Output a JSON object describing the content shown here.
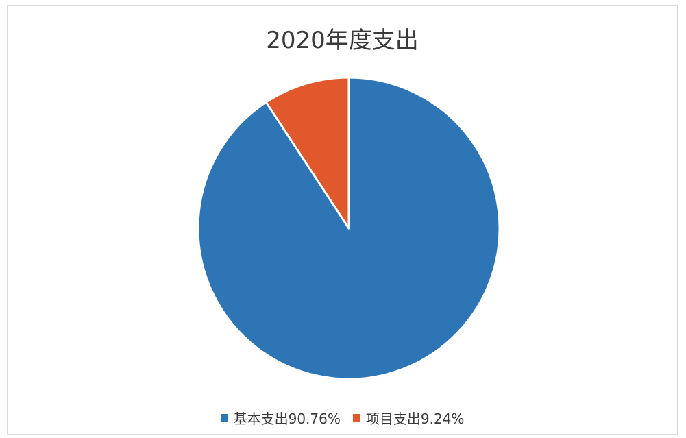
{
  "chart_data": {
    "type": "pie",
    "title": "2020年度支出",
    "series": [
      {
        "name": "基本支出",
        "value": 90.76,
        "color": "#2e75b6",
        "legend_label": "基本支出90.76%"
      },
      {
        "name": "项目支出",
        "value": 9.24,
        "color": "#e0582c",
        "legend_label": "项目支出9.24%"
      }
    ],
    "start_angle_deg": 0,
    "direction": "clockwise",
    "legend_position": "bottom",
    "slice_border_color": "#ffffff"
  }
}
